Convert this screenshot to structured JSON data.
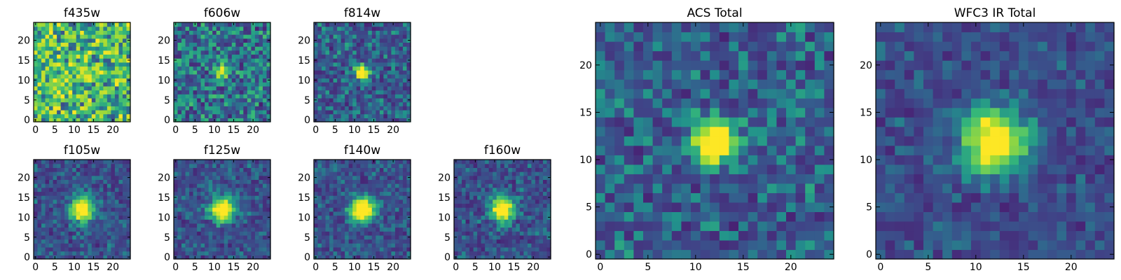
{
  "chart_data": [
    {
      "type": "heatmap",
      "title": "f435w",
      "xticks": [
        "0",
        "5",
        "10",
        "15",
        "20"
      ],
      "yticks": [
        "0",
        "5",
        "10",
        "15",
        "20"
      ],
      "xlim": [
        0,
        25
      ],
      "ylim": [
        0,
        25
      ],
      "source_peak": 0.15,
      "noise_level": 0.85,
      "source_center": [
        12.5,
        12.5
      ],
      "source_width": 1.3
    },
    {
      "type": "heatmap",
      "title": "f606w",
      "xticks": [
        "0",
        "5",
        "10",
        "15",
        "20"
      ],
      "yticks": [
        "0",
        "5",
        "10",
        "15",
        "20"
      ],
      "xlim": [
        0,
        25
      ],
      "ylim": [
        0,
        25
      ],
      "source_peak": 0.55,
      "noise_level": 0.7,
      "source_center": [
        12.5,
        12.5
      ],
      "source_width": 1.4
    },
    {
      "type": "heatmap",
      "title": "f814w",
      "xticks": [
        "0",
        "5",
        "10",
        "15",
        "20"
      ],
      "yticks": [
        "0",
        "5",
        "10",
        "15",
        "20"
      ],
      "xlim": [
        0,
        25
      ],
      "ylim": [
        0,
        25
      ],
      "source_peak": 0.95,
      "noise_level": 0.55,
      "source_center": [
        12.5,
        12.5
      ],
      "source_width": 1.3
    },
    {
      "type": "heatmap",
      "title": "f105w",
      "xticks": [
        "0",
        "5",
        "10",
        "15",
        "20"
      ],
      "yticks": [
        "0",
        "5",
        "10",
        "15",
        "20"
      ],
      "xlim": [
        0,
        25
      ],
      "ylim": [
        0,
        25
      ],
      "source_peak": 1.0,
      "noise_level": 0.45,
      "source_center": [
        12.5,
        12.5
      ],
      "source_width": 2.0
    },
    {
      "type": "heatmap",
      "title": "f125w",
      "xticks": [
        "0",
        "5",
        "10",
        "15",
        "20"
      ],
      "yticks": [
        "0",
        "5",
        "10",
        "15",
        "20"
      ],
      "xlim": [
        0,
        25
      ],
      "ylim": [
        0,
        25
      ],
      "source_peak": 1.0,
      "noise_level": 0.45,
      "source_center": [
        12.5,
        12.5
      ],
      "source_width": 2.0
    },
    {
      "type": "heatmap",
      "title": "f140w",
      "xticks": [
        "0",
        "5",
        "10",
        "15",
        "20"
      ],
      "yticks": [
        "0",
        "5",
        "10",
        "15",
        "20"
      ],
      "xlim": [
        0,
        25
      ],
      "ylim": [
        0,
        25
      ],
      "source_peak": 1.0,
      "noise_level": 0.45,
      "source_center": [
        12.5,
        12.5
      ],
      "source_width": 2.1
    },
    {
      "type": "heatmap",
      "title": "f160w",
      "xticks": [
        "0",
        "5",
        "10",
        "15",
        "20"
      ],
      "yticks": [
        "0",
        "5",
        "10",
        "15",
        "20"
      ],
      "xlim": [
        0,
        25
      ],
      "ylim": [
        0,
        25
      ],
      "source_peak": 1.0,
      "noise_level": 0.45,
      "source_center": [
        12.5,
        12.5
      ],
      "source_width": 2.0
    },
    {
      "type": "heatmap",
      "title": "ACS Total",
      "xticks": [
        "0",
        "5",
        "10",
        "15",
        "20"
      ],
      "yticks": [
        "0",
        "5",
        "10",
        "15",
        "20"
      ],
      "xlim": [
        0,
        25
      ],
      "ylim": [
        0,
        25
      ],
      "source_peak": 1.0,
      "noise_level": 0.55,
      "source_center": [
        12.5,
        12.5
      ],
      "source_width": 1.5
    },
    {
      "type": "heatmap",
      "title": "WFC3 IR Total",
      "xticks": [
        "0",
        "5",
        "10",
        "15",
        "20"
      ],
      "yticks": [
        "0",
        "5",
        "10",
        "15",
        "20"
      ],
      "xlim": [
        0,
        25
      ],
      "ylim": [
        0,
        25
      ],
      "source_peak": 1.0,
      "noise_level": 0.4,
      "source_center": [
        12.5,
        12.5
      ],
      "source_width": 2.2
    }
  ],
  "colormap": "viridis",
  "colors": {
    "frame": "#000000",
    "background": "#ffffff"
  }
}
